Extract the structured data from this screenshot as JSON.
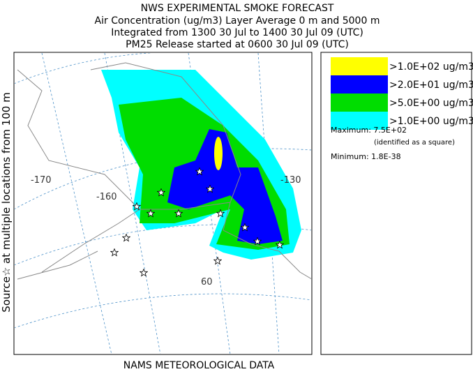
{
  "header": {
    "title": "NWS EXPERIMENTAL SMOKE FORECAST",
    "lines": [
      "Air Concentration (ug/m3) Layer Average    0 m and  5000 m",
      "Integrated from 1300 30 Jul to 1400 30 Jul 09 (UTC)",
      "PM25 Release started at 0600 30 Jul 09 (UTC)"
    ]
  },
  "side_label": "Source☆  at multiple locations    from   100 m",
  "map": {
    "graticule_labels": [
      "-170",
      "-160",
      "-130",
      "60"
    ]
  },
  "legend": {
    "items": [
      {
        "label": ">1.0E+02 ug/m3",
        "color": "#ffff00"
      },
      {
        "label": ">2.0E+01 ug/m3",
        "color": "#0000ff"
      },
      {
        "label": ">5.0E+00 ug/m3",
        "color": "#00dd00"
      },
      {
        "label": ">1.0E+00 ug/m3",
        "color": "#00ffff"
      }
    ],
    "maximum": "Maximum: 7.5E+02",
    "maximum_note": "(identified as a square)",
    "minimum": "Minimum: 1.8E-38"
  },
  "footer": "NAMS METEOROLOGICAL DATA"
}
